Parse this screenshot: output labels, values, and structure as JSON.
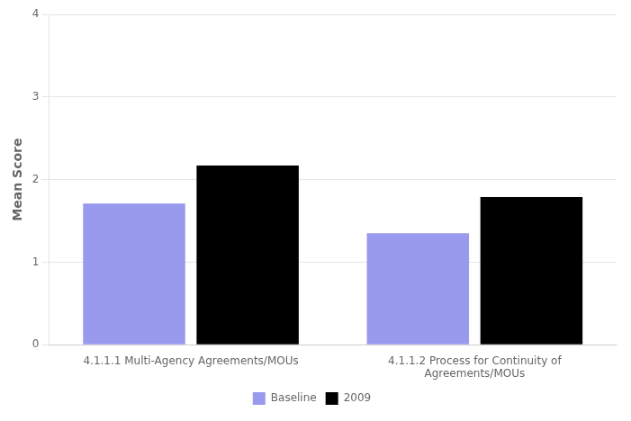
{
  "chart_data": {
    "type": "bar",
    "categories": [
      "4.1.1.1 Multi-Agency Agreements/MOUs",
      "4.1.1.2 Process for Continuity of\nAgreements/MOUs"
    ],
    "series": [
      {
        "name": "Baseline",
        "color": "#9999ee",
        "values": [
          1.71,
          1.35
        ]
      },
      {
        "name": "2009",
        "color": "#000000",
        "values": [
          2.17,
          1.79
        ]
      }
    ],
    "ylabel": "Mean Score",
    "ylim": [
      0,
      4
    ],
    "yticks": [
      0,
      1,
      2,
      3,
      4
    ],
    "grid": true,
    "legend": "bottom"
  }
}
